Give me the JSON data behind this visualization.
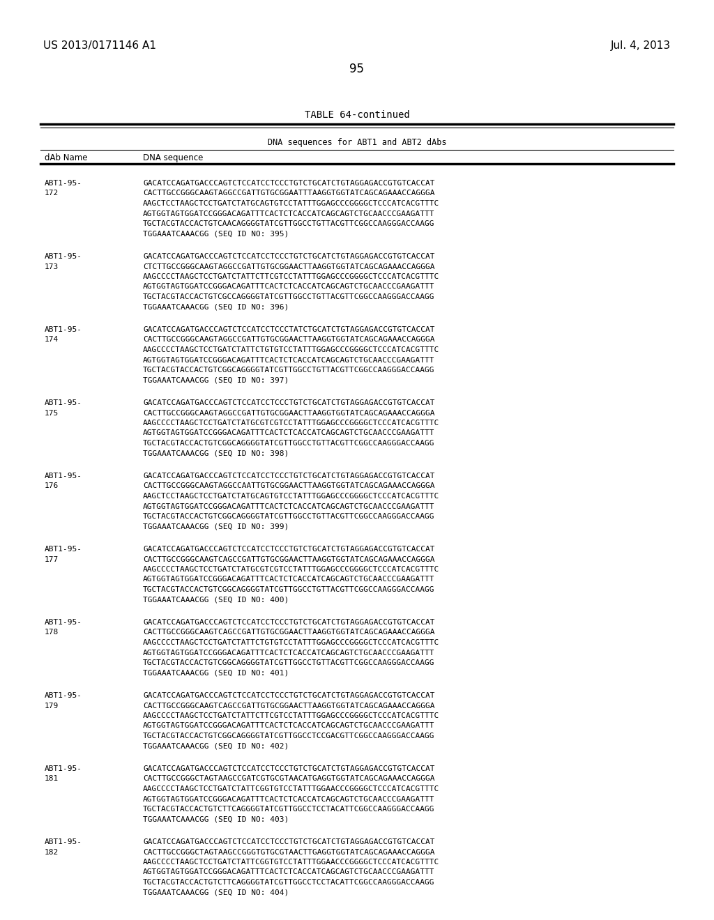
{
  "header_left": "US 2013/0171146 A1",
  "header_right": "Jul. 4, 2013",
  "page_number": "95",
  "table_title": "TABLE 64-continued",
  "table_subtitle": "DNA sequences for ABT1 and ABT2 dAbs",
  "col1_header": "dAb Name",
  "col2_header": "DNA sequence",
  "entries": [
    {
      "name1": "ABT1-95-",
      "name2": "172",
      "seq": [
        "GACATCCAGATGACCCAGTCTCCATCCTCCCTGTCTGCATCTGTAGGAGACCGTGTCACCAT",
        "CACTTGCCGGGCAAGTAGGCCGATTGTGCGGAATTTAAGGTGGTATCAGCAGAAACCAGGGA",
        "AAGCTCCTAAGCTCCTGATCTATGCAGTGTCCTATTTGGAGCCCGGGGCTCCCATCACGTTTC",
        "AGTGGTAGTGGATCCGGGACAGATTTCACTCTCACCATCAGCAGTCTGCAACCCGAAGATTT",
        "TGCTACGTACCACTGTCAACAGGGGTATCGTTGGCCTGTTACGTTCGGCCAAGGGACCAAGG",
        "TGGAAATCAAACGG (SEQ ID NO: 395)"
      ]
    },
    {
      "name1": "ABT1-95-",
      "name2": "173",
      "seq": [
        "GACATCCAGATGACCCAGTCTCCATCCTCCCTGTCTGCATCTGTAGGAGACCGTGTCACCAT",
        "CTCTTGCCGGGCAAGTAGGCCGATTGTGCGGAACTTAAGGTGGTATCAGCAGAAACCAGGGA",
        "AAGCCCCTAAGCTCCTGATCTATTCTTCGTCCTATTTGGAGCCCGGGGCTCCCATCACGTTTC",
        "AGTGGTAGTGGATCCGGGACAGATTTCACTCTCACCATCAGCAGTCTGCAACCCGAAGATTT",
        "TGCTACGTACCACTGTCGCCAGGGGTATCGTTGGCCTGTTACGTTCGGCCAAGGGACCAAGG",
        "TGGAAATCAAACGG (SEQ ID NO: 396)"
      ]
    },
    {
      "name1": "ABT1-95-",
      "name2": "174",
      "seq": [
        "GACATCCAGATGACCCAGTCTCCATCCTCCCTATCTGCATCTGTAGGAGACCGTGTCACCAT",
        "CACTTGCCGGGCAAGTAGGCCGATTGTGCGGAACTTAAGGTGGTATCAGCAGAAACCAGGGA",
        "AAGCCCCTAAGCTCCTGATCTATTCTGTGTCCTATTTGGAGCCCGGGGCTCCCATCACGTTTC",
        "AGTGGTAGTGGATCCGGGACAGATTTCACTCTCACCATCAGCAGTCTGCAACCCGAAGATTT",
        "TGCTACGTACCACTGTCGGCAGGGGTATCGTTGGCCTGTTACGTTCGGCCAAGGGACCAAGG",
        "TGGAAATCAAACGG (SEQ ID NO: 397)"
      ]
    },
    {
      "name1": "ABT1-95-",
      "name2": "175",
      "seq": [
        "GACATCCAGATGACCCAGTCTCCATCCTCCCTGTCTGCATCTGTAGGAGACCGTGTCACCAT",
        "CACTTGCCGGGCAAGTAGGCCGATTGTGCGGAACTTAAGGTGGTATCAGCAGAAACCAGGGA",
        "AAGCCCCTAAGCTCCTGATCTATGCGTCGTCCTATTTGGAGCCCGGGGCTCCCATCACGTTTC",
        "AGTGGTAGTGGATCCGGGACAGATTTCACTCTCACCATCAGCAGTCTGCAACCCGAAGATTT",
        "TGCTACGTACCACTGTCGGCAGGGGTATCGTTGGCCTGTTACGTTCGGCCAAGGGACCAAGG",
        "TGGAAATCAAACGG (SEQ ID NO: 398)"
      ]
    },
    {
      "name1": "ABT1-95-",
      "name2": "176",
      "seq": [
        "GACATCCAGATGACCCAGTCTCCATCCTCCCTGTCTGCATCTGTAGGAGACCGTGTCACCAT",
        "CACTTGCCGGGCAAGTAGGCCAATTGTGCGGAACTTAAGGTGGTATCAGCAGAAACCAGGGA",
        "AAGCTCCTAAGCTCCTGATCTATGCAGTGTCCTATTTGGAGCCCGGGGCTCCCATCACGTTTC",
        "AGTGGTAGTGGATCCGGGACAGATTTCACTCTCACCATCAGCAGTCTGCAACCCGAAGATTT",
        "TGCTACGTACCACTGTCGGCAGGGGTATCGTTGGCCTGTTACGTTCGGCCAAGGGACCAAGG",
        "TGGAAATCAAACGG (SEQ ID NO: 399)"
      ]
    },
    {
      "name1": "ABT1-95-",
      "name2": "177",
      "seq": [
        "GACATCCAGATGACCCAGTCTCCATCCTCCCTGTCTGCATCTGTAGGAGACCGTGTCACCAT",
        "CACTTGCCGGGCAAGTCAGCCGATTGTGCGGAACTTAAGGTGGTATCAGCAGAAACCAGGGA",
        "AAGCCCCTAAGCTCCTGATCTATGCGTCGTCCTATTTGGAGCCCGGGGCTCCCATCACGTTTC",
        "AGTGGTAGTGGATCCGGGACAGATTTCACTCTCACCATCAGCAGTCTGCAACCCGAAGATTT",
        "TGCTACGTACCACTGTCGGCAGGGGTATCGTTGGCCTGTTACGTTCGGCCAAGGGACCAAGG",
        "TGGAAATCAAACGG (SEQ ID NO: 400)"
      ]
    },
    {
      "name1": "ABT1-95-",
      "name2": "178",
      "seq": [
        "GACATCCAGATGACCCAGTCTCCATCCTCCCTGTCTGCATCTGTAGGAGACCGTGTCACCAT",
        "CACTTGCCGGGCAAGTCAGCCGATTGTGCGGAACTTAAGGTGGTATCAGCAGAAACCAGGGA",
        "AAGCCCCTAAGCTCCTGATCTATTCTGTGTCCTATTTGGAGCCCGGGGCTCCCATCACGTTTC",
        "AGTGGTAGTGGATCCGGGACAGATTTCACTCTCACCATCAGCAGTCTGCAACCCGAAGATTT",
        "TGCTACGTACCACTGTCGGCAGGGGTATCGTTGGCCTGTTACGTTCGGCCAAGGGACCAAGG",
        "TGGAAATCAAACGG (SEQ ID NO: 401)"
      ]
    },
    {
      "name1": "ABT1-95-",
      "name2": "179",
      "seq": [
        "GACATCCAGATGACCCAGTCTCCATCCTCCCTGTCTGCATCTGTAGGAGACCGTGTCACCAT",
        "CACTTGCCGGGCAAGTCAGCCGATTGTGCGGAACTTAAGGTGGTATCAGCAGAAACCAGGGA",
        "AAGCCCCTAAGCTCCTGATCTATTCTTCGTCCTATTTGGAGCCCGGGGCTCCCATCACGTTTC",
        "AGTGGTAGTGGATCCGGGACAGATTTCACTCTCACCATCAGCAGTCTGCAACCCGAAGATTT",
        "TGCTACGTACCACTGTCGGCAGGGGTATCGTTGGCCTCCGACGTTCGGCCAAGGGACCAAGG",
        "TGGAAATCAAACGG (SEQ ID NO: 402)"
      ]
    },
    {
      "name1": "ABT1-95-",
      "name2": "181",
      "seq": [
        "GACATCCAGATGACCCAGTCTCCATCCTCCCTGTCTGCATCTGTAGGAGACCGTGTCACCAT",
        "CACTTGCCGGGCTAGTAAGCCGATCGTGCGTAACATGAGGTGGTATCAGCAGAAACCAGGGA",
        "AAGCCCCTAAGCTCCTGATCTATTCGGTGTCCTATTTGGAACCCGGGGCTCCCATCACGTTTC",
        "AGTGGTAGTGGATCCGGGACAGATTTCACTCTCACCATCAGCAGTCTGCAACCCGAAGATTT",
        "TGCTACGTACCACTGTCTTCAGGGGTATCGTTGGCCTCCTACATTCGGCCAAGGGACCAAGG",
        "TGGAAATCAAACGG (SEQ ID NO: 403)"
      ]
    },
    {
      "name1": "ABT1-95-",
      "name2": "182",
      "seq": [
        "GACATCCAGATGACCCAGTCTCCATCCTCCCTGTCTGCATCTGTAGGAGACCGTGTCACCAT",
        "CACTTGCCGGGCTAGTAAGCCGGGTGTGCGTAACTTGAGGTGGTATCAGCAGAAACCAGGGA",
        "AAGCCCCTAAGCTCCTGATCTATTCGGTGTCCTATTTGGAACCCGGGGCTCCCATCACGTTTC",
        "AGTGGTAGTGGATCCGGGACAGATTTCACTCTCACCATCAGCAGTCTGCAACCCGAAGATTT",
        "TGCTACGTACCACTGTCTTCAGGGGTATCGTTGGCCTCCTACATTCGGCCAAGGGACCAAGG",
        "TGGAAATCAAACGG (SEQ ID NO: 404)"
      ]
    }
  ],
  "bg_color": "#ffffff",
  "text_color": "#000000",
  "line_color": "#000000"
}
